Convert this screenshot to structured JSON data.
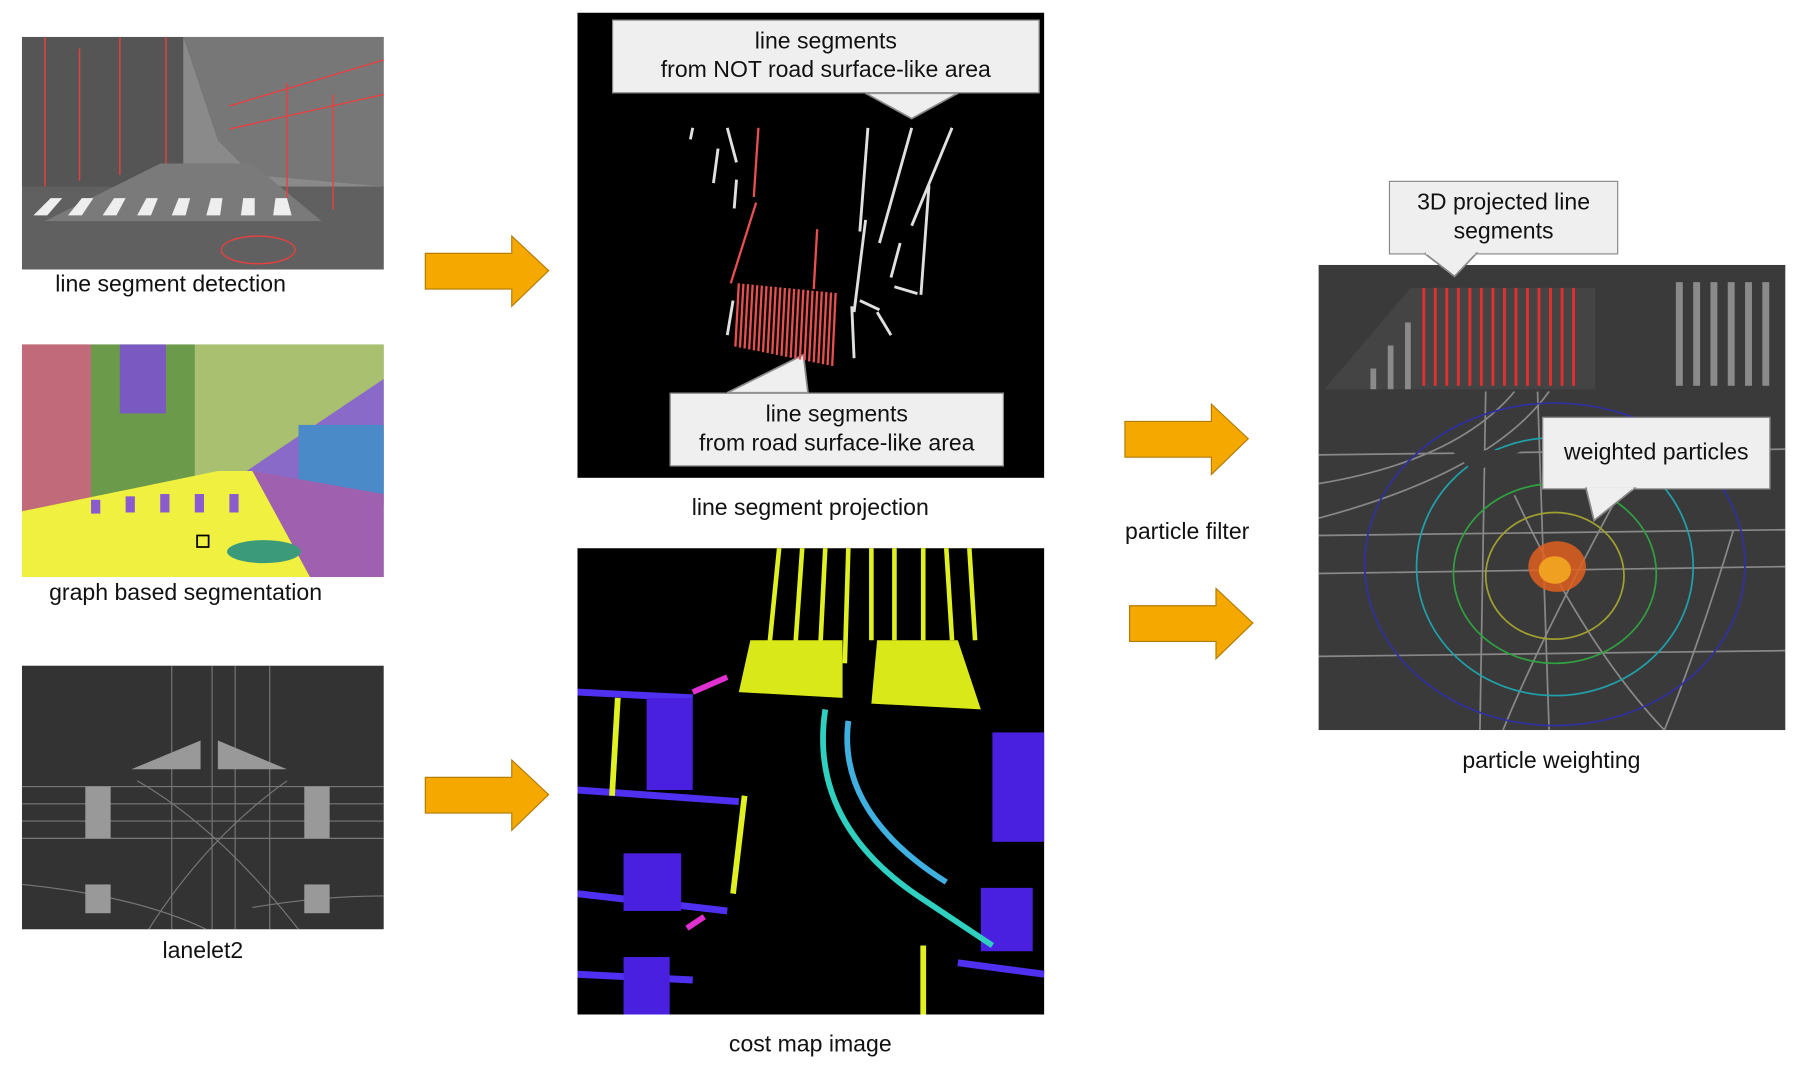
{
  "inputs": {
    "line_segment_detection": {
      "caption": "line segment detection"
    },
    "graph_based_segmentation": {
      "caption": "graph based segmentation"
    },
    "lanelet2": {
      "caption": "lanelet2"
    }
  },
  "projection": {
    "caption": "line segment projection",
    "callout_top": {
      "line1": "line segments",
      "line2": "from NOT road surface-like area"
    },
    "callout_bottom": {
      "line1": "line segments",
      "line2": "from road surface-like area"
    }
  },
  "cost_map": {
    "caption": "cost map image"
  },
  "particle_filter": {
    "label": "particle filter"
  },
  "weighting": {
    "caption": "particle weighting",
    "callout_3d": {
      "line1": "3D projected line",
      "line2": "segments"
    },
    "callout_particles": {
      "line1": "weighted particles"
    }
  },
  "colors": {
    "arrow": "#f5a800",
    "road_segments": "#e85050",
    "other_segments": "#d0d0d0"
  }
}
